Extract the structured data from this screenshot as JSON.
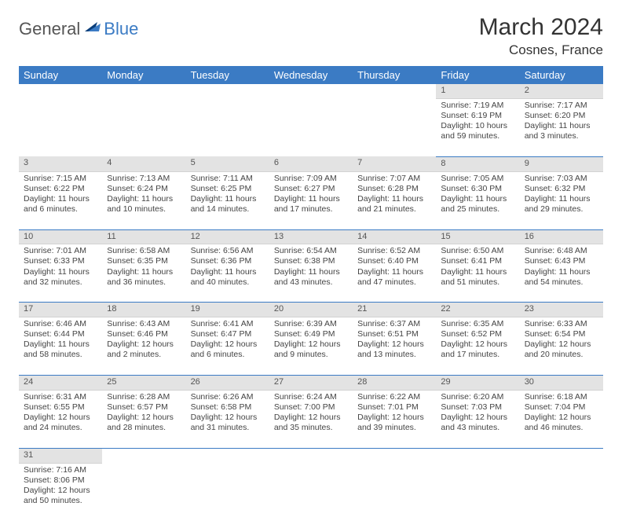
{
  "brand": {
    "part1": "General",
    "part2": "Blue"
  },
  "title": "March 2024",
  "location": "Cosnes, France",
  "colors": {
    "accent": "#3b7bc4",
    "header_bg": "#3b7bc4",
    "daynum_bg": "#e3e3e3"
  },
  "weekdays": [
    "Sunday",
    "Monday",
    "Tuesday",
    "Wednesday",
    "Thursday",
    "Friday",
    "Saturday"
  ],
  "weeks": [
    [
      null,
      null,
      null,
      null,
      null,
      {
        "n": "1",
        "sr": "Sunrise: 7:19 AM",
        "ss": "Sunset: 6:19 PM",
        "dl": "Daylight: 10 hours and 59 minutes."
      },
      {
        "n": "2",
        "sr": "Sunrise: 7:17 AM",
        "ss": "Sunset: 6:20 PM",
        "dl": "Daylight: 11 hours and 3 minutes."
      }
    ],
    [
      {
        "n": "3",
        "sr": "Sunrise: 7:15 AM",
        "ss": "Sunset: 6:22 PM",
        "dl": "Daylight: 11 hours and 6 minutes."
      },
      {
        "n": "4",
        "sr": "Sunrise: 7:13 AM",
        "ss": "Sunset: 6:24 PM",
        "dl": "Daylight: 11 hours and 10 minutes."
      },
      {
        "n": "5",
        "sr": "Sunrise: 7:11 AM",
        "ss": "Sunset: 6:25 PM",
        "dl": "Daylight: 11 hours and 14 minutes."
      },
      {
        "n": "6",
        "sr": "Sunrise: 7:09 AM",
        "ss": "Sunset: 6:27 PM",
        "dl": "Daylight: 11 hours and 17 minutes."
      },
      {
        "n": "7",
        "sr": "Sunrise: 7:07 AM",
        "ss": "Sunset: 6:28 PM",
        "dl": "Daylight: 11 hours and 21 minutes."
      },
      {
        "n": "8",
        "sr": "Sunrise: 7:05 AM",
        "ss": "Sunset: 6:30 PM",
        "dl": "Daylight: 11 hours and 25 minutes."
      },
      {
        "n": "9",
        "sr": "Sunrise: 7:03 AM",
        "ss": "Sunset: 6:32 PM",
        "dl": "Daylight: 11 hours and 29 minutes."
      }
    ],
    [
      {
        "n": "10",
        "sr": "Sunrise: 7:01 AM",
        "ss": "Sunset: 6:33 PM",
        "dl": "Daylight: 11 hours and 32 minutes."
      },
      {
        "n": "11",
        "sr": "Sunrise: 6:58 AM",
        "ss": "Sunset: 6:35 PM",
        "dl": "Daylight: 11 hours and 36 minutes."
      },
      {
        "n": "12",
        "sr": "Sunrise: 6:56 AM",
        "ss": "Sunset: 6:36 PM",
        "dl": "Daylight: 11 hours and 40 minutes."
      },
      {
        "n": "13",
        "sr": "Sunrise: 6:54 AM",
        "ss": "Sunset: 6:38 PM",
        "dl": "Daylight: 11 hours and 43 minutes."
      },
      {
        "n": "14",
        "sr": "Sunrise: 6:52 AM",
        "ss": "Sunset: 6:40 PM",
        "dl": "Daylight: 11 hours and 47 minutes."
      },
      {
        "n": "15",
        "sr": "Sunrise: 6:50 AM",
        "ss": "Sunset: 6:41 PM",
        "dl": "Daylight: 11 hours and 51 minutes."
      },
      {
        "n": "16",
        "sr": "Sunrise: 6:48 AM",
        "ss": "Sunset: 6:43 PM",
        "dl": "Daylight: 11 hours and 54 minutes."
      }
    ],
    [
      {
        "n": "17",
        "sr": "Sunrise: 6:46 AM",
        "ss": "Sunset: 6:44 PM",
        "dl": "Daylight: 11 hours and 58 minutes."
      },
      {
        "n": "18",
        "sr": "Sunrise: 6:43 AM",
        "ss": "Sunset: 6:46 PM",
        "dl": "Daylight: 12 hours and 2 minutes."
      },
      {
        "n": "19",
        "sr": "Sunrise: 6:41 AM",
        "ss": "Sunset: 6:47 PM",
        "dl": "Daylight: 12 hours and 6 minutes."
      },
      {
        "n": "20",
        "sr": "Sunrise: 6:39 AM",
        "ss": "Sunset: 6:49 PM",
        "dl": "Daylight: 12 hours and 9 minutes."
      },
      {
        "n": "21",
        "sr": "Sunrise: 6:37 AM",
        "ss": "Sunset: 6:51 PM",
        "dl": "Daylight: 12 hours and 13 minutes."
      },
      {
        "n": "22",
        "sr": "Sunrise: 6:35 AM",
        "ss": "Sunset: 6:52 PM",
        "dl": "Daylight: 12 hours and 17 minutes."
      },
      {
        "n": "23",
        "sr": "Sunrise: 6:33 AM",
        "ss": "Sunset: 6:54 PM",
        "dl": "Daylight: 12 hours and 20 minutes."
      }
    ],
    [
      {
        "n": "24",
        "sr": "Sunrise: 6:31 AM",
        "ss": "Sunset: 6:55 PM",
        "dl": "Daylight: 12 hours and 24 minutes."
      },
      {
        "n": "25",
        "sr": "Sunrise: 6:28 AM",
        "ss": "Sunset: 6:57 PM",
        "dl": "Daylight: 12 hours and 28 minutes."
      },
      {
        "n": "26",
        "sr": "Sunrise: 6:26 AM",
        "ss": "Sunset: 6:58 PM",
        "dl": "Daylight: 12 hours and 31 minutes."
      },
      {
        "n": "27",
        "sr": "Sunrise: 6:24 AM",
        "ss": "Sunset: 7:00 PM",
        "dl": "Daylight: 12 hours and 35 minutes."
      },
      {
        "n": "28",
        "sr": "Sunrise: 6:22 AM",
        "ss": "Sunset: 7:01 PM",
        "dl": "Daylight: 12 hours and 39 minutes."
      },
      {
        "n": "29",
        "sr": "Sunrise: 6:20 AM",
        "ss": "Sunset: 7:03 PM",
        "dl": "Daylight: 12 hours and 43 minutes."
      },
      {
        "n": "30",
        "sr": "Sunrise: 6:18 AM",
        "ss": "Sunset: 7:04 PM",
        "dl": "Daylight: 12 hours and 46 minutes."
      }
    ],
    [
      {
        "n": "31",
        "sr": "Sunrise: 7:16 AM",
        "ss": "Sunset: 8:06 PM",
        "dl": "Daylight: 12 hours and 50 minutes."
      },
      null,
      null,
      null,
      null,
      null,
      null
    ]
  ]
}
